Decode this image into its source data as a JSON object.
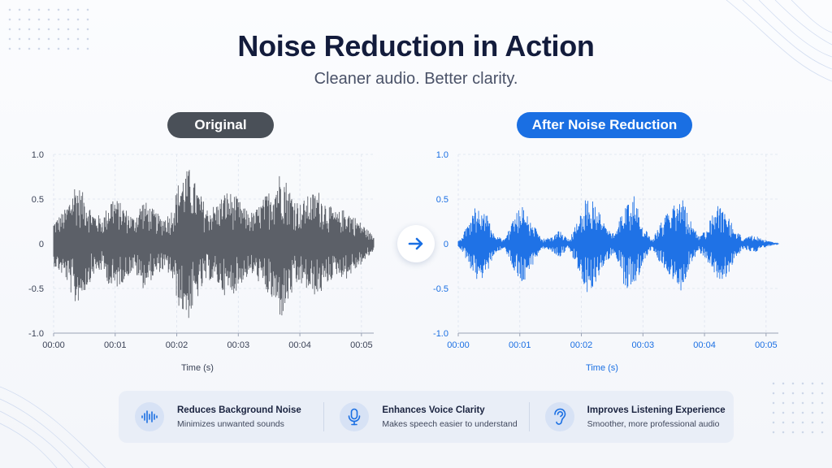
{
  "header": {
    "title": "Noise Reduction in Action",
    "subtitle": "Cleaner audio. Better clarity."
  },
  "panels": {
    "original_label": "Original",
    "after_label": "After Noise Reduction"
  },
  "colors": {
    "original_wave": "#5c6068",
    "after_wave": "#1f72e6",
    "original_pill": "#4a5058",
    "after_pill": "#1a6fe3"
  },
  "chart_data": [
    {
      "type": "area",
      "series": [
        {
          "name": "Original"
        }
      ],
      "xlabel": "Time (s)",
      "ylabel": "",
      "x_ticks": [
        "00:00",
        "00:01",
        "00:02",
        "00:03",
        "00:04",
        "00:05"
      ],
      "y_ticks": [
        "1.0",
        "0.5",
        "0",
        "-0.5",
        "-1.0"
      ],
      "xlim": [
        0,
        5.2
      ],
      "ylim": [
        -1.0,
        1.0
      ],
      "grid": true,
      "envelope": {
        "t": [
          0,
          0.2,
          0.35,
          0.5,
          0.65,
          0.8,
          0.95,
          1.1,
          1.3,
          1.45,
          1.6,
          1.75,
          1.9,
          2.05,
          2.2,
          2.35,
          2.5,
          2.65,
          2.8,
          2.95,
          3.1,
          3.25,
          3.4,
          3.55,
          3.7,
          3.85,
          4.0,
          4.15,
          4.3,
          4.45,
          4.6,
          4.75,
          4.9,
          5.05,
          5.2
        ],
        "amp": [
          0.25,
          0.4,
          0.7,
          0.55,
          0.35,
          0.3,
          0.55,
          0.45,
          0.3,
          0.5,
          0.4,
          0.3,
          0.35,
          0.75,
          0.85,
          0.6,
          0.4,
          0.45,
          0.6,
          0.55,
          0.4,
          0.35,
          0.5,
          0.65,
          0.85,
          0.6,
          0.45,
          0.55,
          0.6,
          0.45,
          0.35,
          0.4,
          0.3,
          0.2,
          0.08
        ]
      }
    },
    {
      "type": "area",
      "series": [
        {
          "name": "After Noise Reduction"
        }
      ],
      "xlabel": "Time (s)",
      "ylabel": "",
      "x_ticks": [
        "00:00",
        "00:01",
        "00:02",
        "00:03",
        "00:04",
        "00:05"
      ],
      "y_ticks": [
        "1.0",
        "0.5",
        "0",
        "-0.5",
        "-1.0"
      ],
      "xlim": [
        0,
        5.2
      ],
      "ylim": [
        -1.0,
        1.0
      ],
      "grid": true,
      "envelope": {
        "t": [
          0,
          0.15,
          0.3,
          0.45,
          0.6,
          0.75,
          0.9,
          1.05,
          1.2,
          1.35,
          1.5,
          1.65,
          1.8,
          1.95,
          2.1,
          2.25,
          2.4,
          2.55,
          2.7,
          2.85,
          3.0,
          3.15,
          3.3,
          3.45,
          3.6,
          3.75,
          3.9,
          4.05,
          4.2,
          4.35,
          4.5,
          4.65,
          4.8,
          4.95,
          5.1,
          5.2
        ],
        "amp": [
          0.03,
          0.2,
          0.45,
          0.35,
          0.1,
          0.05,
          0.3,
          0.45,
          0.25,
          0.05,
          0.08,
          0.15,
          0.05,
          0.3,
          0.55,
          0.45,
          0.2,
          0.1,
          0.5,
          0.55,
          0.2,
          0.05,
          0.25,
          0.4,
          0.6,
          0.3,
          0.08,
          0.2,
          0.45,
          0.4,
          0.15,
          0.06,
          0.1,
          0.05,
          0.02,
          0.01
        ]
      }
    }
  ],
  "features": [
    {
      "icon": "waveform-icon",
      "title": "Reduces Background Noise",
      "desc": "Minimizes unwanted sounds"
    },
    {
      "icon": "microphone-icon",
      "title": "Enhances Voice Clarity",
      "desc": "Makes speech easier to understand"
    },
    {
      "icon": "ear-icon",
      "title": "Improves Listening Experience",
      "desc": "Smoother, more professional audio"
    }
  ]
}
